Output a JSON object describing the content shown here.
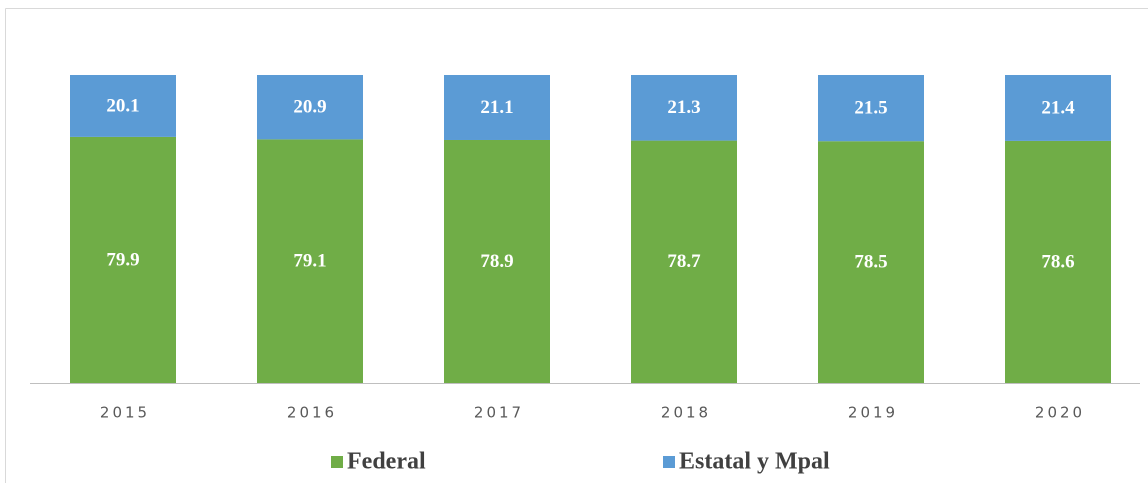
{
  "chart_data": {
    "type": "stacked_bar",
    "categories": [
      "2015",
      "2016",
      "2017",
      "2018",
      "2019",
      "2020"
    ],
    "series": [
      {
        "name": "Federal",
        "color": "#70ad47",
        "values": [
          79.9,
          79.1,
          78.9,
          78.7,
          78.5,
          78.6
        ]
      },
      {
        "name": "Estatal y Mpal",
        "color": "#5b9bd5",
        "values": [
          20.1,
          20.9,
          21.1,
          21.3,
          21.5,
          21.4
        ]
      }
    ],
    "ylim": [
      0,
      100
    ]
  }
}
